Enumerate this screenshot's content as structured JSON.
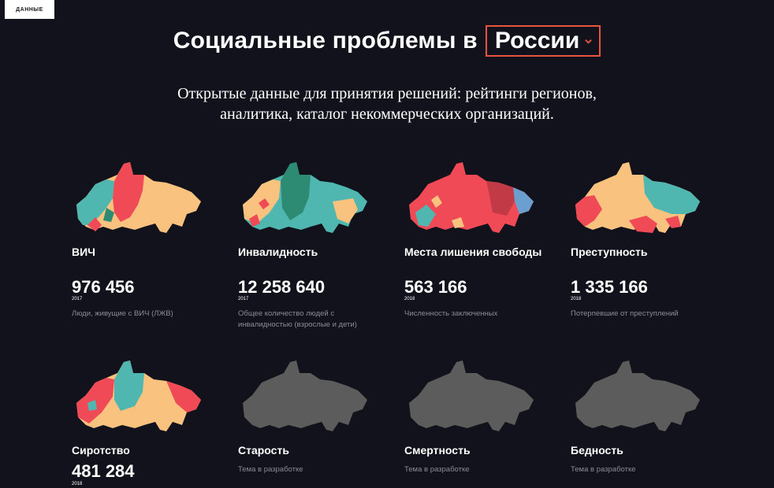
{
  "badge": {
    "label": "ДАННЫЕ"
  },
  "header": {
    "title": "Социальные проблемы в",
    "region": "России",
    "subtitle_line1": "Открытые данные для принятия решений: рейтинги регионов,",
    "subtitle_line2": "аналитика, каталог некоммерческих организаций."
  },
  "colors": {
    "background": "#12121c",
    "accent": "#e8543f",
    "peach": "#f9c27e",
    "teal": "#4fb7b0",
    "red": "#ef4a56",
    "dark_teal": "#2d8a73",
    "blue": "#6b9fcf",
    "grey": "#5c5c5c"
  },
  "cards": [
    {
      "name": "ВИЧ",
      "value": "976 456",
      "year": "2017",
      "desc": "Люди, живущие с ВИЧ (ЛЖВ)",
      "map": "colored"
    },
    {
      "name": "Инвалидность",
      "value": "12 258 640",
      "year": "2017",
      "desc": "Общее количество людей с инвалидностью (взрослые и дети)",
      "map": "colored"
    },
    {
      "name": "Места лишения свободы",
      "value": "563 166",
      "year": "2018",
      "desc": "Численность заключенных",
      "map": "colored"
    },
    {
      "name": "Преступность",
      "value": "1 335 166",
      "year": "2018",
      "desc": "Потерпевшие от преступлений",
      "map": "colored"
    },
    {
      "name": "Сиротство",
      "value": "481 284",
      "year": "2018",
      "desc": "",
      "map": "colored"
    },
    {
      "name": "Старость",
      "value": "",
      "year": "",
      "desc": "Тема в разработке",
      "map": "grey"
    },
    {
      "name": "Смертность",
      "value": "",
      "year": "",
      "desc": "Тема в разработке",
      "map": "grey"
    },
    {
      "name": "Бедность",
      "value": "",
      "year": "",
      "desc": "Тема в разработке",
      "map": "grey"
    }
  ]
}
